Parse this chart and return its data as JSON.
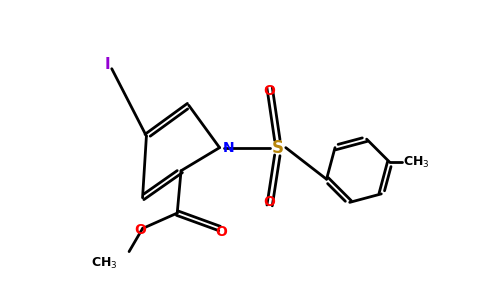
{
  "bg_color": "#ffffff",
  "bond_color": "#000000",
  "N_color": "#0000ff",
  "O_color": "#ff0000",
  "S_color": "#b8860b",
  "I_color": "#9400d3",
  "line_width": 2.0,
  "dbo": 0.06,
  "figsize": [
    4.84,
    3.0
  ],
  "dpi": 100,
  "xlim": [
    0,
    9.68
  ],
  "ylim": [
    0,
    6.0
  ]
}
